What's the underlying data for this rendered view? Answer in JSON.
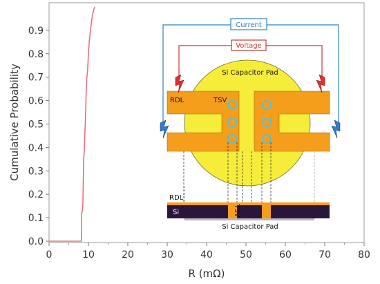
{
  "chart_data": {
    "type": "line",
    "xlabel": "R (mΩ)",
    "ylabel": "Cumulative Probability",
    "xlim": [
      0,
      80
    ],
    "ylim": [
      0.0,
      1.0
    ],
    "xticks": [
      0,
      10,
      20,
      30,
      40,
      50,
      60,
      70,
      80
    ],
    "xtick_labels": [
      "0",
      "10",
      "20",
      "30",
      "40",
      "50",
      "60",
      "70",
      "80"
    ],
    "yticks": [
      0.0,
      0.1,
      0.2,
      0.3,
      0.4,
      0.5,
      0.6,
      0.7,
      0.8,
      0.9
    ],
    "ytick_labels": [
      "0.0",
      "0.1",
      "0.2",
      "0.3",
      "0.4",
      "0.5",
      "0.6",
      "0.7",
      "0.8",
      "0.9"
    ],
    "grid": false,
    "series": [
      {
        "color": "#e8707a",
        "x": [
          0,
          8.2,
          8.3,
          8.5,
          8.6,
          8.7,
          8.8,
          9.0,
          9.1,
          9.3,
          9.4,
          9.6,
          9.8,
          10.0,
          10.2,
          10.5,
          10.8,
          11.1,
          11.4,
          11.6
        ],
        "y": [
          0.0,
          0.0,
          0.12,
          0.13,
          0.17,
          0.27,
          0.35,
          0.4,
          0.46,
          0.55,
          0.62,
          0.7,
          0.73,
          0.8,
          0.85,
          0.9,
          0.94,
          0.97,
          0.99,
          1.0
        ]
      }
    ]
  },
  "diagram": {
    "current_label": "Current",
    "voltage_label": "Voltage",
    "pad_label": "Si Capacitor Pad",
    "rdl_label": "RDL",
    "tsv_label": "TSV",
    "cross_rdl_label": "RDL",
    "cross_si_label": "Si",
    "cross_tsv_label": "TSV",
    "cross_pad_label": "Si Capacitor Pad",
    "colors": {
      "current_wire": "#2f7fc1",
      "voltage_wire": "#c0392b",
      "pad": "#f5ed3a",
      "rdl": "#f59e1b",
      "si": "#2a163a",
      "tsv_ring": "#58bfd6"
    }
  }
}
